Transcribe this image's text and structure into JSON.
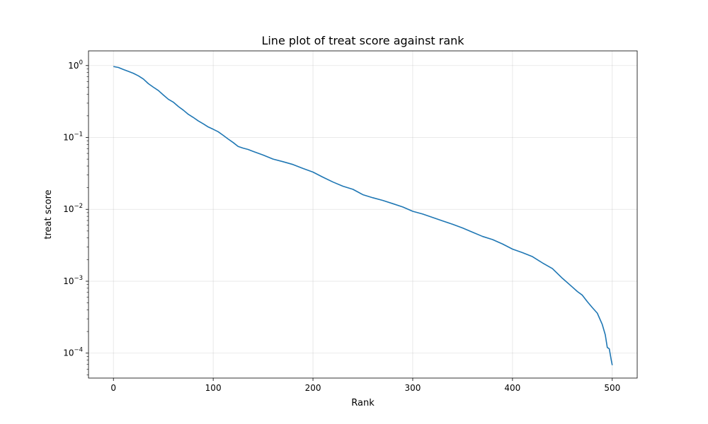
{
  "chart_data": {
    "type": "line",
    "title": "Line plot of treat score against rank",
    "xlabel": "Rank",
    "ylabel": "treat score",
    "xlim": [
      -25,
      525
    ],
    "ylim": [
      4.5e-05,
      1.6
    ],
    "y_scale": "log",
    "grid": true,
    "legend": "none",
    "x_ticks": [
      0,
      100,
      200,
      300,
      400,
      500
    ],
    "y_ticks": [
      {
        "value": 0.0001,
        "base": "10",
        "exp": "−4"
      },
      {
        "value": 0.001,
        "base": "10",
        "exp": "−3"
      },
      {
        "value": 0.01,
        "base": "10",
        "exp": "−2"
      },
      {
        "value": 0.1,
        "base": "10",
        "exp": "−1"
      },
      {
        "value": 1,
        "base": "10",
        "exp": "0"
      }
    ],
    "series": [
      {
        "color": "#1f77b4",
        "x": [
          0,
          5,
          10,
          15,
          20,
          25,
          30,
          35,
          40,
          45,
          50,
          55,
          60,
          65,
          70,
          75,
          80,
          85,
          90,
          95,
          100,
          105,
          110,
          115,
          120,
          125,
          130,
          135,
          140,
          150,
          160,
          170,
          180,
          190,
          200,
          210,
          220,
          230,
          240,
          250,
          260,
          270,
          280,
          290,
          300,
          310,
          320,
          330,
          340,
          350,
          360,
          370,
          380,
          390,
          400,
          410,
          420,
          430,
          440,
          450,
          460,
          465,
          470,
          475,
          480,
          485,
          490,
          493,
          495,
          497,
          499,
          500
        ],
        "y": [
          0.97,
          0.94,
          0.88,
          0.83,
          0.78,
          0.72,
          0.65,
          0.56,
          0.5,
          0.45,
          0.39,
          0.34,
          0.31,
          0.27,
          0.24,
          0.21,
          0.19,
          0.17,
          0.155,
          0.14,
          0.13,
          0.12,
          0.107,
          0.095,
          0.085,
          0.075,
          0.071,
          0.068,
          0.064,
          0.057,
          0.05,
          0.046,
          0.042,
          0.037,
          0.033,
          0.028,
          0.024,
          0.021,
          0.019,
          0.016,
          0.0145,
          0.0133,
          0.012,
          0.0108,
          0.0094,
          0.0086,
          0.0077,
          0.0069,
          0.0062,
          0.0055,
          0.0048,
          0.0042,
          0.0038,
          0.0033,
          0.0028,
          0.0025,
          0.0022,
          0.0018,
          0.0015,
          0.0011,
          0.00083,
          0.00072,
          0.00064,
          0.00052,
          0.00043,
          0.00036,
          0.00025,
          0.00018,
          0.00012,
          0.000115,
          8e-05,
          6.8e-05
        ]
      }
    ]
  }
}
